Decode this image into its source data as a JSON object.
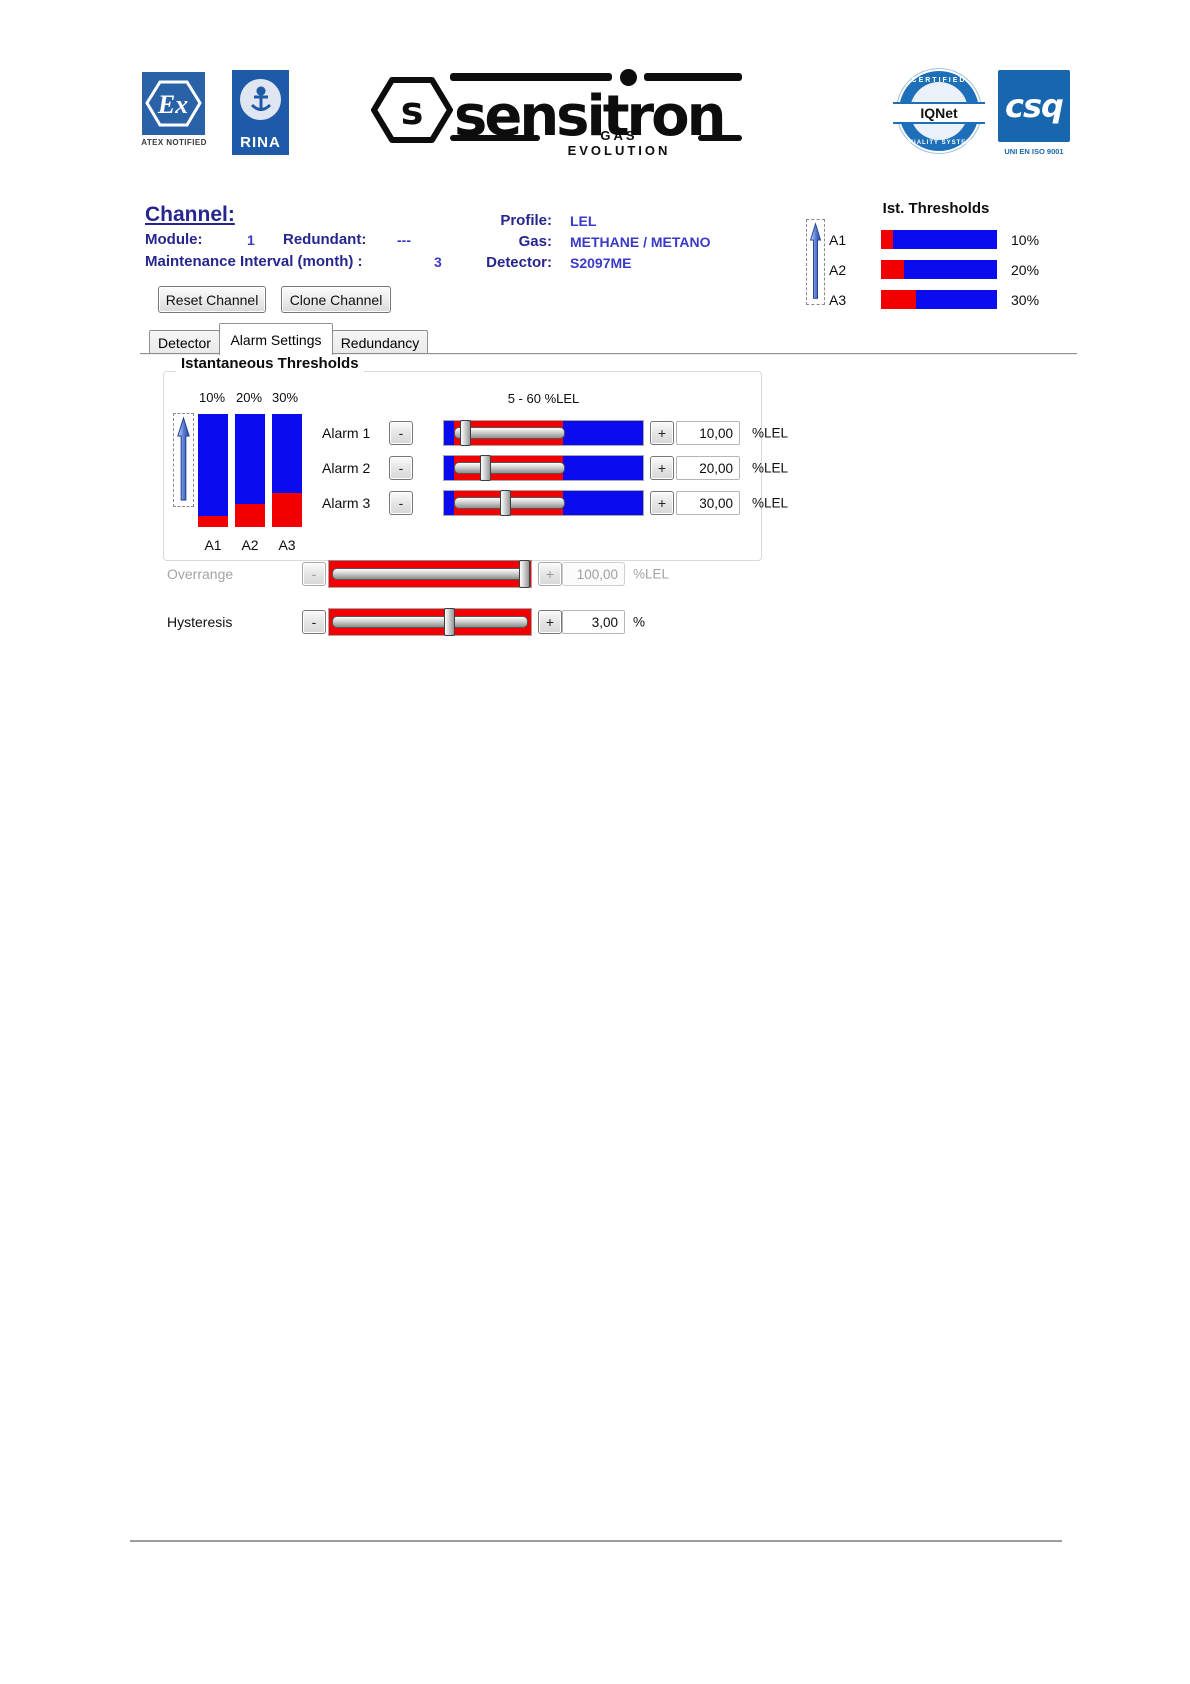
{
  "header": {
    "atex": {
      "symbol": "Ex",
      "caption": "ATEX NOTIFIED"
    },
    "rina": {
      "name": "RINA"
    },
    "sensitron": {
      "initial": "s",
      "name": "sensitron",
      "tagline": "GAS EVOLUTION"
    },
    "iqnet": {
      "arc_top": "CERTIFIED",
      "name": "IQNet",
      "arc_bottom": "QUALITY SYSTEM"
    },
    "csq": {
      "name": "csq",
      "caption": "UNI EN ISO 9001"
    }
  },
  "channel": {
    "title": "Channel:",
    "module_label": "Module:",
    "module_value": "1",
    "redundant_label": "Redundant:",
    "redundant_value": "---",
    "maintenance_label": "Maintenance Interval (month) :",
    "maintenance_value": "3",
    "profile_label": "Profile:",
    "profile_value": "LEL",
    "gas_label": "Gas:",
    "gas_value": "METHANE / METANO",
    "detector_label": "Detector:",
    "detector_value": "S2097ME",
    "reset_button": "Reset Channel",
    "clone_button": "Clone Channel"
  },
  "ist_thresholds": {
    "title": "Ist. Thresholds",
    "rows": [
      {
        "label": "A1",
        "value": "10%",
        "percent": 10
      },
      {
        "label": "A2",
        "value": "20%",
        "percent": 20
      },
      {
        "label": "A3",
        "value": "30%",
        "percent": 30
      }
    ]
  },
  "tabs": [
    {
      "label": "Detector"
    },
    {
      "label": "Alarm Settings"
    },
    {
      "label": "Redundancy"
    }
  ],
  "panel": {
    "group_title": "Istantaneous Thresholds",
    "range_label": "5 - 60 %LEL",
    "bar_top_labels": [
      "10%",
      "20%",
      "30%"
    ],
    "bar_bottom_labels": [
      "A1",
      "A2",
      "A3"
    ],
    "bars": [
      {
        "percent": 10
      },
      {
        "percent": 20
      },
      {
        "percent": 30
      }
    ],
    "minus": "-",
    "plus": "+",
    "alarms": [
      {
        "label": "Alarm 1",
        "value": "10,00",
        "unit": "%LEL",
        "percent": 10
      },
      {
        "label": "Alarm 2",
        "value": "20,00",
        "unit": "%LEL",
        "percent": 20
      },
      {
        "label": "Alarm 3",
        "value": "30,00",
        "unit": "%LEL",
        "percent": 30
      }
    ],
    "overrange": {
      "label": "Overrange",
      "value": "100,00",
      "unit": "%LEL",
      "percent": 96
    },
    "hysteresis": {
      "label": "Hysteresis",
      "value": "3,00",
      "unit": "%",
      "percent": 59
    }
  },
  "colors": {
    "navy": "#26268F",
    "value_blue": "#3A3AC8",
    "bar_blue": "#0B0BEF",
    "bar_red": "#F20000",
    "brand_blue": "#1C6FB8",
    "disabled_gray": "#A3A3A6"
  }
}
